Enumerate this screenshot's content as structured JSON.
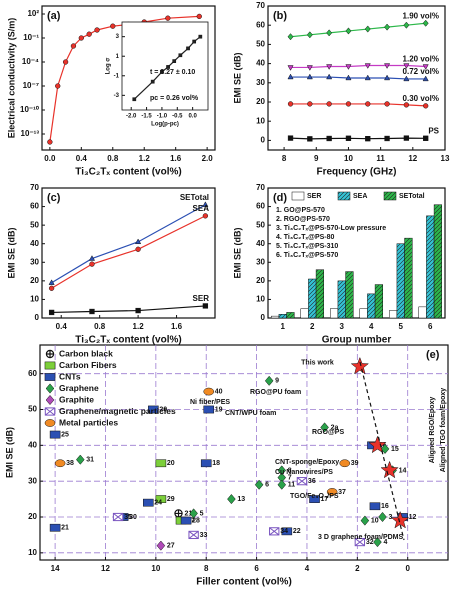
{
  "chart_data": [
    {
      "type": "line",
      "panel_label": "(a)",
      "x_label": "Ti₃C₂Tₓ content (vol%)",
      "y_label": "Electrical conductivity (S/m)",
      "x": [
        0,
        0.1,
        0.2,
        0.3,
        0.4,
        0.5,
        0.6,
        0.8,
        1.0,
        1.2,
        1.5,
        1.9
      ],
      "values": [
        1e-14,
        1e-07,
        0.0001,
        0.01,
        0.1,
        0.3,
        1,
        3,
        5,
        10,
        30,
        50
      ],
      "color": "#e8322a",
      "marker": "circle",
      "xlim": [
        -0.1,
        2.1
      ],
      "ylim": [
        1e-15,
        1000
      ],
      "ylog": true,
      "xticks": [
        {
          "value": 0,
          "label": "0.0"
        },
        0.4,
        0.8,
        1.2,
        1.6,
        {
          "value": 2,
          "label": "2.0"
        }
      ],
      "yticks": [
        {
          "value": 100,
          "label": "10²"
        },
        {
          "value": 0.1,
          "label": "10⁻¹"
        },
        {
          "value": 0.0001,
          "label": "10⁻⁴"
        },
        {
          "value": 1e-07,
          "label": "10⁻⁷"
        },
        {
          "value": 1e-10,
          "label": "10⁻¹⁰"
        },
        {
          "value": 1e-13,
          "label": "10⁻¹³"
        }
      ]
    },
    {
      "type": "line",
      "inset": true,
      "x_label": "Log(p-pc)",
      "y_label": "Log σ",
      "x": [
        -1.9,
        -1.3,
        -1.0,
        -0.8,
        -0.6,
        -0.4,
        -0.15,
        0.05,
        0.25
      ],
      "values": [
        -3.4,
        -1.6,
        -0.6,
        -0.1,
        0.5,
        1.1,
        1.8,
        2.5,
        3.0
      ],
      "color": "#222222",
      "marker": "square",
      "xlim": [
        -2.3,
        0.5
      ],
      "ylim": [
        -4.5,
        4.5
      ],
      "xticks": [
        {
          "value": -2,
          "label": "-2.0"
        },
        -1.5,
        {
          "value": -1,
          "label": "-1.0"
        },
        -0.5,
        {
          "value": 0,
          "label": "0.0"
        }
      ],
      "yticks": [
        -3,
        -1,
        1,
        3
      ],
      "annotations": [
        "t = 3.27 ± 0.10",
        "pc = 0.26 vol%"
      ]
    },
    {
      "type": "line",
      "panel_label": "(b)",
      "x_label": "Frequency (GHz)",
      "y_label": "EMI SE (dB)",
      "x": [
        8.2,
        8.8,
        9.4,
        10.0,
        10.6,
        11.2,
        11.8,
        12.4
      ],
      "series": [
        {
          "name": "PS",
          "color": "#111111",
          "marker": "square",
          "values": [
            1.2,
            0.8,
            1.0,
            1.1,
            0.9,
            1.0,
            1.2,
            1.1
          ]
        },
        {
          "name": "0.30 vol%",
          "color": "#e8322a",
          "marker": "circle",
          "values": [
            19,
            19,
            19,
            19,
            19,
            19,
            18.5,
            18
          ]
        },
        {
          "name": "0.72 vol%",
          "color": "#2b4fb3",
          "marker": "triangle",
          "values": [
            33,
            33,
            33,
            32.5,
            32.5,
            32.5,
            32,
            32
          ]
        },
        {
          "name": "1.20 vol%",
          "color": "#c43bc4",
          "marker": "triangle-down",
          "values": [
            38,
            38,
            38.5,
            38.5,
            39,
            39,
            39,
            38.5
          ]
        },
        {
          "name": "1.90 vol%",
          "color": "#2db84a",
          "marker": "diamond",
          "values": [
            54,
            55,
            56,
            57,
            58,
            59,
            60,
            61
          ]
        }
      ],
      "xlim": [
        7.5,
        13
      ],
      "xticks": [
        8,
        9,
        10,
        11,
        12,
        13
      ],
      "ylim": [
        -5,
        70
      ],
      "yticks": [
        0,
        10,
        20,
        30,
        40,
        50,
        60,
        70
      ]
    },
    {
      "type": "line",
      "panel_label": "(c)",
      "x_label": "Ti₃C₂Tₓ content (vol%)",
      "y_label": "EMI SE (dB)",
      "x": [
        0.3,
        0.72,
        1.2,
        1.9
      ],
      "series": [
        {
          "name": "SETotal",
          "color": "#2b4fb3",
          "marker": "triangle",
          "values": [
            19,
            32,
            41,
            61
          ]
        },
        {
          "name": "SEA",
          "color": "#e8322a",
          "marker": "circle",
          "values": [
            16,
            29,
            37,
            55
          ]
        },
        {
          "name": "SER",
          "color": "#111111",
          "marker": "square",
          "values": [
            3,
            3.5,
            4,
            6.5
          ]
        }
      ],
      "xlim": [
        0.2,
        2.0
      ],
      "xticks": [
        0.4,
        0.8,
        1.2,
        1.6
      ],
      "ylim": [
        0,
        70
      ],
      "yticks": [
        0,
        10,
        20,
        30,
        40,
        50,
        60,
        70
      ]
    },
    {
      "type": "bar",
      "panel_label": "(d)",
      "x_label": "Group number",
      "y_label": "EMI SE (dB)",
      "categories": [
        "1",
        "2",
        "3",
        "4",
        "5",
        "6"
      ],
      "series": [
        {
          "name": "SER",
          "color": "#ffffff",
          "values": [
            1,
            5,
            5,
            5,
            4,
            6
          ]
        },
        {
          "name": "SEA",
          "color": "#34c3d6",
          "hatch": true,
          "values": [
            2,
            21,
            20,
            13,
            40,
            55
          ]
        },
        {
          "name": "SETotal",
          "color": "#2db84a",
          "hatch": true,
          "values": [
            3,
            26,
            25,
            18,
            43,
            61
          ]
        }
      ],
      "ylim": [
        0,
        70
      ],
      "yticks": [
        0,
        10,
        20,
        30,
        40,
        50,
        60,
        70
      ],
      "notes": [
        "1. GO@PS-570",
        "2. RGO@PS-570",
        "3. Ti₃C₂Tₓ@PS-570-Low pressure",
        "4. Ti₃C₂Tₓ@PS-80",
        "5. Ti₃C₂Tₓ@PS-310",
        "6. Ti₃C₂Tₓ@PS-570"
      ]
    },
    {
      "type": "scatter",
      "panel_label": "(e)",
      "x_label": "Filler content (vol%)",
      "y_label": "EMI SE (dB)",
      "xlim": [
        14.6,
        -1.6
      ],
      "xticks": [
        14,
        12,
        10,
        8,
        6,
        4,
        2,
        0
      ],
      "ylim": [
        8,
        68
      ],
      "yticks": [
        10,
        20,
        30,
        40,
        50,
        60
      ],
      "grid": true,
      "grid_color": "#9b7bd0",
      "series": [
        {
          "name": "Carbon black",
          "color": "#111111",
          "marker": "circle-cross",
          "x": [
            9.1
          ],
          "values": [
            21
          ],
          "labels": [
            "21"
          ]
        },
        {
          "name": "Carbon Fibers",
          "color": "#7ccf3a",
          "marker": "rect",
          "x": [
            9.8,
            9.8,
            9.0
          ],
          "values": [
            35,
            25,
            19
          ],
          "labels": [
            "20",
            "29",
            "27"
          ]
        },
        {
          "name": "CNTs",
          "color": "#2b4fb3",
          "marker": "rect",
          "x": [
            14.0,
            14.0,
            11.3,
            10.3,
            10.1,
            8.8,
            8.0,
            7.9,
            4.8,
            3.7,
            1.3,
            1.4,
            0.2
          ],
          "values": [
            43,
            17,
            20,
            24,
            50,
            19,
            35,
            50,
            16,
            25,
            23,
            40,
            20
          ],
          "labels": [
            "25",
            "21",
            "30",
            "24",
            "20",
            "28",
            "18",
            "19",
            "22",
            "17",
            "16",
            "26",
            "12"
          ]
        },
        {
          "name": "Graphene",
          "color": "#2aa14a",
          "marker": "diamond",
          "x": [
            13.0,
            8.5,
            7.0,
            5.5,
            5.9,
            5.0,
            5.0,
            5.0,
            3.3,
            1.7,
            1.0,
            1.2,
            0.9,
            0.6
          ],
          "values": [
            36,
            21,
            25,
            58,
            29,
            31,
            33,
            29,
            45,
            19,
            20,
            13,
            39,
            33
          ],
          "labels": [
            "31",
            "5",
            "13",
            "9",
            "6",
            "7",
            "8",
            "11",
            "2a",
            "10",
            "3",
            "4",
            "15",
            "14"
          ]
        },
        {
          "name": "Graphite",
          "color": "#b04ab8",
          "marker": "diamond",
          "x": [
            9.8
          ],
          "values": [
            12
          ],
          "labels": [
            "27"
          ]
        },
        {
          "name": "Graphene/magnetic particles",
          "color": "#7a55c0",
          "marker": "x-box",
          "x": [
            11.5,
            8.5,
            4.2,
            5.3,
            1.9
          ],
          "values": [
            20,
            15,
            30,
            16,
            13
          ],
          "labels": [
            "35",
            "33",
            "36",
            "34",
            "32"
          ]
        },
        {
          "name": "Metal particles",
          "color": "#f08a24",
          "marker": "ellipse",
          "x": [
            13.8,
            7.9,
            3.0,
            2.5
          ],
          "values": [
            35,
            55,
            27,
            35
          ],
          "labels": [
            "38",
            "40",
            "37",
            "39"
          ]
        },
        {
          "name": "This work",
          "color": "#e8322a",
          "marker": "star",
          "in_legend": false,
          "x": [
            1.9,
            1.2,
            0.72,
            0.3
          ],
          "values": [
            62,
            40,
            33,
            19
          ]
        }
      ],
      "annotations": [
        "Ni fiber/PES",
        "RGO@PU foam",
        "CNT/WPU foam",
        "RGO@PS",
        "CNT-sponge/Epoxy",
        "Cu Nanowires/PS",
        "TGO/Fe₃O₄/PS",
        "3 D graphene foam/PDMS",
        "Aligned RGO/Epoxy",
        "Aligned TGO foam/Epoxy"
      ]
    }
  ]
}
